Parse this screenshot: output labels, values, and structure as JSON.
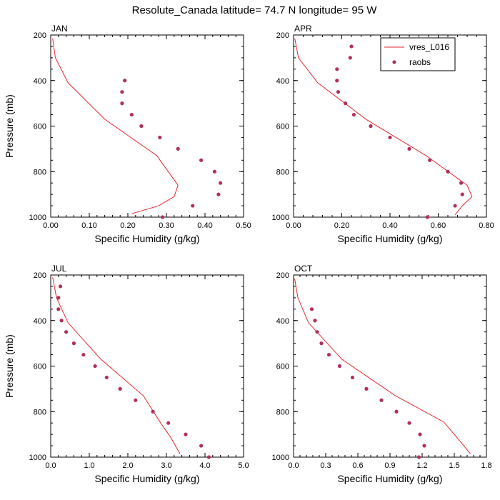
{
  "figure": {
    "title": "Resolute_Canada  latitude= 74.7 N longitude= 95 W"
  },
  "colors": {
    "model": "#e8262b",
    "raobs": "#b0305a"
  },
  "legend": {
    "model_label": "vres_L016",
    "raobs_label": "raobs"
  },
  "chart_data": [
    {
      "type": "line",
      "panel": "JAN",
      "title": "JAN",
      "xlabel": "Specific Humidity (g/kg)",
      "ylabel": "Pressure (mb)",
      "xlim": [
        0,
        0.5
      ],
      "ylim": [
        200,
        1000
      ],
      "xticks": [
        0,
        0.1,
        0.2,
        0.3,
        0.4,
        0.5
      ],
      "xtick_labels": [
        "0.00",
        "0.10",
        "0.20",
        "0.30",
        "0.40",
        "0.50"
      ],
      "yticks": [
        200,
        400,
        600,
        800,
        1000
      ],
      "series": [
        {
          "name": "vres_L016",
          "kind": "line",
          "x": [
            0.005,
            0.012,
            0.045,
            0.14,
            0.275,
            0.33,
            0.32,
            0.28,
            0.21
          ],
          "y": [
            215,
            300,
            410,
            570,
            730,
            860,
            910,
            950,
            985
          ]
        },
        {
          "name": "raobs",
          "kind": "scatter",
          "x": [
            0.192,
            0.185,
            0.185,
            0.21,
            0.235,
            0.283,
            0.33,
            0.39,
            0.425,
            0.44,
            0.435,
            0.368,
            0.29
          ],
          "y": [
            400,
            450,
            500,
            550,
            600,
            650,
            700,
            750,
            800,
            850,
            900,
            950,
            1000
          ]
        }
      ]
    },
    {
      "type": "line",
      "panel": "APR",
      "title": "APR",
      "xlabel": "Specific Humidity (g/kg)",
      "ylabel": "",
      "xlim": [
        0,
        0.8
      ],
      "ylim": [
        200,
        1000
      ],
      "xticks": [
        0,
        0.2,
        0.4,
        0.6,
        0.8
      ],
      "xtick_labels": [
        "0.00",
        "0.20",
        "0.40",
        "0.60",
        "0.80"
      ],
      "yticks": [
        200,
        400,
        600,
        800,
        1000
      ],
      "series": [
        {
          "name": "vres_L016",
          "kind": "line",
          "x": [
            0.005,
            0.02,
            0.1,
            0.3,
            0.55,
            0.72,
            0.74,
            0.7,
            0.67
          ],
          "y": [
            215,
            300,
            410,
            570,
            730,
            860,
            910,
            950,
            990
          ]
        },
        {
          "name": "raobs",
          "kind": "scatter",
          "x": [
            0.24,
            0.235,
            0.18,
            0.18,
            0.185,
            0.215,
            0.25,
            0.32,
            0.4,
            0.48,
            0.565,
            0.64,
            0.695,
            0.7,
            0.67,
            0.555
          ],
          "y": [
            250,
            300,
            350,
            400,
            450,
            500,
            550,
            600,
            650,
            700,
            750,
            800,
            850,
            900,
            950,
            1000
          ]
        }
      ]
    },
    {
      "type": "line",
      "panel": "JUL",
      "title": "JUL",
      "xlabel": "Specific Humidity (g/kg)",
      "ylabel": "Pressure (mb)",
      "xlim": [
        0,
        5
      ],
      "ylim": [
        200,
        1000
      ],
      "xticks": [
        0,
        1,
        2,
        3,
        4,
        5
      ],
      "xtick_labels": [
        "0.0",
        "1.0",
        "2.0",
        "3.0",
        "4.0",
        "5.0"
      ],
      "yticks": [
        200,
        400,
        600,
        800,
        1000
      ],
      "series": [
        {
          "name": "vres_L016",
          "kind": "line",
          "x": [
            0.05,
            0.15,
            0.45,
            1.3,
            2.4,
            2.85,
            3.1,
            3.35
          ],
          "y": [
            210,
            300,
            410,
            570,
            730,
            850,
            910,
            985
          ]
        },
        {
          "name": "raobs",
          "kind": "scatter",
          "x": [
            0.25,
            0.2,
            0.2,
            0.28,
            0.4,
            0.6,
            0.85,
            1.15,
            1.45,
            1.8,
            2.2,
            2.65,
            3.05,
            3.5,
            3.9,
            4.1
          ],
          "y": [
            250,
            300,
            350,
            400,
            450,
            500,
            550,
            600,
            650,
            700,
            750,
            800,
            850,
            900,
            950,
            1000
          ]
        }
      ]
    },
    {
      "type": "line",
      "panel": "OCT",
      "title": "OCT",
      "xlabel": "Specific Humidity (g/kg)",
      "ylabel": "",
      "xlim": [
        0,
        1.8
      ],
      "ylim": [
        200,
        1000
      ],
      "xticks": [
        0,
        0.3,
        0.6,
        0.9,
        1.2,
        1.5,
        1.8
      ],
      "xtick_labels": [
        "0.0",
        "0.3",
        "0.6",
        "0.9",
        "1.2",
        "1.5",
        "1.8"
      ],
      "yticks": [
        200,
        400,
        600,
        800,
        1000
      ],
      "series": [
        {
          "name": "vres_L016",
          "kind": "line",
          "x": [
            0.01,
            0.04,
            0.14,
            0.45,
            0.95,
            1.4,
            1.5,
            1.65
          ],
          "y": [
            215,
            300,
            410,
            570,
            730,
            845,
            900,
            985
          ]
        },
        {
          "name": "raobs",
          "kind": "scatter",
          "x": [
            0.17,
            0.2,
            0.22,
            0.26,
            0.33,
            0.43,
            0.55,
            0.68,
            0.82,
            0.96,
            1.08,
            1.18,
            1.22,
            1.17
          ],
          "y": [
            350,
            400,
            450,
            500,
            550,
            600,
            650,
            700,
            750,
            800,
            850,
            900,
            950,
            1000
          ]
        }
      ]
    }
  ]
}
